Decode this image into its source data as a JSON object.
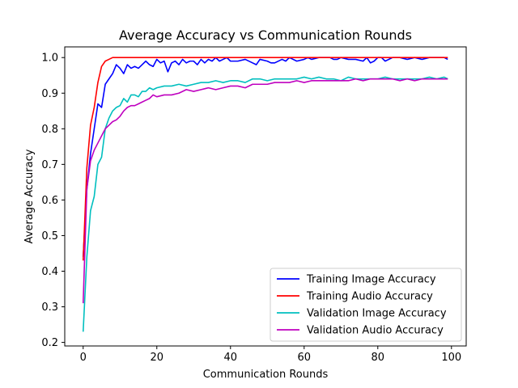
{
  "chart_data": {
    "type": "line",
    "title": "Average Accuracy vs Communication Rounds",
    "xlabel": "Communication Rounds",
    "ylabel": "Average Accuracy",
    "xlim": [
      -5,
      104
    ],
    "ylim": [
      0.19,
      1.03
    ],
    "xticks": [
      0,
      20,
      40,
      60,
      80,
      100
    ],
    "yticks": [
      0.2,
      0.3,
      0.4,
      0.5,
      0.6,
      0.7,
      0.8,
      0.9,
      1.0
    ],
    "xtick_labels": [
      "0",
      "20",
      "40",
      "60",
      "80",
      "100"
    ],
    "ytick_labels": [
      "0.2",
      "0.3",
      "0.4",
      "0.5",
      "0.6",
      "0.7",
      "0.8",
      "0.9",
      "1.0"
    ],
    "grid": false,
    "legend_position": "lower-right",
    "series": [
      {
        "name": "Training Image Accuracy",
        "color": "#0000ff",
        "x": [
          0,
          1,
          2,
          3,
          4,
          5,
          6,
          7,
          8,
          9,
          10,
          11,
          12,
          13,
          14,
          15,
          16,
          17,
          18,
          19,
          20,
          21,
          22,
          23,
          24,
          25,
          26,
          27,
          28,
          29,
          30,
          31,
          32,
          33,
          34,
          35,
          36,
          37,
          38,
          39,
          40,
          42,
          44,
          46,
          47,
          48,
          50,
          51,
          52,
          54,
          55,
          56,
          58,
          60,
          61,
          62,
          64,
          66,
          67,
          68,
          69,
          70,
          72,
          74,
          76,
          77,
          78,
          79,
          80,
          81,
          82,
          84,
          86,
          88,
          90,
          92,
          94,
          96,
          98,
          99
        ],
        "y": [
          0.44,
          0.63,
          0.73,
          0.8,
          0.87,
          0.86,
          0.925,
          0.94,
          0.955,
          0.98,
          0.97,
          0.955,
          0.98,
          0.97,
          0.975,
          0.97,
          0.98,
          0.99,
          0.98,
          0.975,
          0.995,
          0.985,
          0.99,
          0.96,
          0.985,
          0.99,
          0.98,
          0.995,
          0.985,
          0.99,
          0.99,
          0.98,
          0.995,
          0.985,
          0.995,
          0.99,
          1.0,
          0.99,
          0.995,
          1.0,
          0.99,
          0.99,
          0.995,
          0.985,
          0.98,
          0.995,
          0.99,
          0.985,
          0.985,
          0.995,
          0.99,
          1.0,
          0.99,
          0.995,
          1.0,
          0.995,
          1.0,
          1.0,
          1.0,
          0.995,
          0.995,
          1.0,
          0.995,
          0.995,
          0.99,
          1.0,
          0.985,
          0.99,
          1.0,
          1.0,
          0.99,
          1.0,
          1.0,
          0.995,
          1.0,
          0.995,
          1.0,
          1.0,
          1.0,
          0.995
        ]
      },
      {
        "name": "Training Audio Accuracy",
        "color": "#ff0000",
        "x": [
          0,
          1,
          2,
          3,
          4,
          5,
          6,
          7,
          8,
          10,
          15,
          20,
          30,
          40,
          50,
          60,
          70,
          80,
          90,
          99
        ],
        "y": [
          0.43,
          0.69,
          0.81,
          0.86,
          0.93,
          0.975,
          0.99,
          0.995,
          1.0,
          1.0,
          1.0,
          1.0,
          1.0,
          1.0,
          1.0,
          1.0,
          1.0,
          1.0,
          1.0,
          1.0
        ]
      },
      {
        "name": "Validation Image Accuracy",
        "color": "#00bfbf",
        "x": [
          0,
          1,
          2,
          3,
          4,
          5,
          6,
          7,
          8,
          9,
          10,
          11,
          12,
          13,
          14,
          15,
          16,
          17,
          18,
          19,
          20,
          22,
          24,
          26,
          28,
          30,
          32,
          34,
          36,
          38,
          40,
          42,
          44,
          46,
          48,
          50,
          52,
          54,
          56,
          58,
          60,
          62,
          64,
          66,
          68,
          70,
          72,
          74,
          76,
          78,
          80,
          82,
          84,
          86,
          88,
          90,
          92,
          94,
          96,
          98,
          99
        ],
        "y": [
          0.23,
          0.44,
          0.57,
          0.61,
          0.7,
          0.72,
          0.8,
          0.83,
          0.85,
          0.86,
          0.865,
          0.885,
          0.875,
          0.895,
          0.895,
          0.89,
          0.905,
          0.905,
          0.915,
          0.91,
          0.915,
          0.92,
          0.92,
          0.925,
          0.92,
          0.925,
          0.93,
          0.93,
          0.935,
          0.93,
          0.935,
          0.935,
          0.93,
          0.94,
          0.94,
          0.935,
          0.94,
          0.94,
          0.94,
          0.94,
          0.945,
          0.94,
          0.945,
          0.94,
          0.94,
          0.935,
          0.945,
          0.94,
          0.94,
          0.94,
          0.94,
          0.945,
          0.94,
          0.94,
          0.94,
          0.94,
          0.94,
          0.945,
          0.94,
          0.945,
          0.94
        ]
      },
      {
        "name": "Validation Audio Accuracy",
        "color": "#bf00bf",
        "x": [
          0,
          1,
          2,
          3,
          4,
          5,
          6,
          7,
          8,
          9,
          10,
          11,
          12,
          13,
          14,
          15,
          16,
          17,
          18,
          19,
          20,
          22,
          24,
          26,
          28,
          30,
          32,
          34,
          36,
          38,
          40,
          42,
          44,
          46,
          48,
          50,
          52,
          54,
          56,
          58,
          60,
          62,
          64,
          66,
          68,
          70,
          72,
          74,
          76,
          78,
          80,
          82,
          84,
          86,
          88,
          90,
          92,
          94,
          96,
          98,
          99
        ],
        "y": [
          0.31,
          0.63,
          0.71,
          0.74,
          0.76,
          0.78,
          0.8,
          0.81,
          0.82,
          0.825,
          0.835,
          0.85,
          0.86,
          0.865,
          0.865,
          0.87,
          0.875,
          0.88,
          0.885,
          0.895,
          0.89,
          0.895,
          0.895,
          0.9,
          0.91,
          0.905,
          0.91,
          0.915,
          0.91,
          0.915,
          0.92,
          0.92,
          0.915,
          0.925,
          0.925,
          0.925,
          0.93,
          0.93,
          0.93,
          0.935,
          0.93,
          0.935,
          0.935,
          0.935,
          0.935,
          0.935,
          0.935,
          0.94,
          0.935,
          0.94,
          0.94,
          0.94,
          0.94,
          0.935,
          0.94,
          0.935,
          0.94,
          0.94,
          0.94,
          0.94,
          0.94
        ]
      }
    ]
  }
}
